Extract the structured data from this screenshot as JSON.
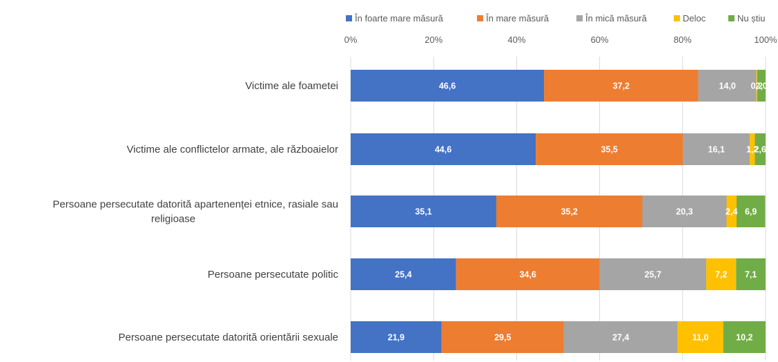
{
  "chart_data": {
    "type": "bar",
    "orientation": "horizontal",
    "stacked": "percent",
    "legend_position": "top",
    "grid": true,
    "xlim": [
      0,
      100
    ],
    "ticks": [
      "0%",
      "20%",
      "40%",
      "60%",
      "80%",
      "100%"
    ],
    "tick_values": [
      0,
      20,
      40,
      60,
      80,
      100
    ],
    "categories": [
      "Victime ale foametei",
      "Victime ale conflictelor armate, ale războaielor",
      [
        "Persoane persecutate datorită apartenenței etnice, rasiale sau",
        "religioase"
      ],
      "Persoane persecutate politic",
      "Persoane persecutate datorită orientării sexuale"
    ],
    "series": [
      {
        "name": "În foarte mare măsură",
        "color": "#4472C4",
        "values": [
          46.6,
          44.6,
          35.1,
          25.4,
          21.9
        ],
        "labels": [
          "46,6",
          "44,6",
          "35,1",
          "25,4",
          "21,9"
        ]
      },
      {
        "name": "În mare măsură",
        "color": "#ED7D31",
        "values": [
          37.2,
          35.5,
          35.2,
          34.6,
          29.5
        ],
        "labels": [
          "37,2",
          "35,5",
          "35,2",
          "34,6",
          "29,5"
        ]
      },
      {
        "name": "În mică măsură",
        "color": "#A5A5A5",
        "values": [
          14.0,
          16.1,
          20.3,
          25.7,
          27.4
        ],
        "labels": [
          "14,0",
          "16,1",
          "20,3",
          "25,7",
          "27,4"
        ]
      },
      {
        "name": "Deloc",
        "color": "#FFC000",
        "values": [
          0.2,
          1.2,
          2.4,
          7.2,
          11.0
        ],
        "labels": [
          "0,2",
          "1,2",
          "2,4",
          "7,2",
          "11,0"
        ]
      },
      {
        "name": "Nu știu",
        "color": "#70AD47",
        "values": [
          2.0,
          2.6,
          6.9,
          7.1,
          10.2
        ],
        "labels": [
          "2,0",
          "2,6",
          "6,9",
          "7,1",
          "10,2"
        ]
      }
    ]
  }
}
